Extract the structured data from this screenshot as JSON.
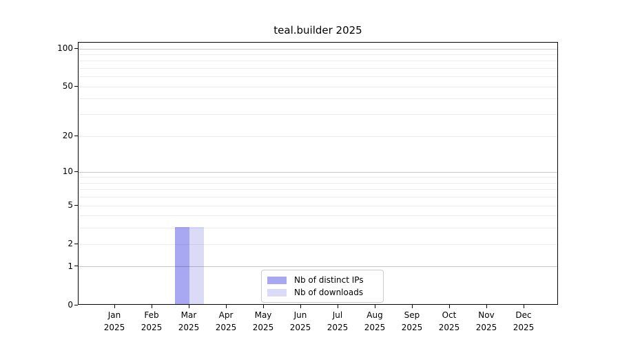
{
  "chart_data": {
    "type": "bar",
    "title": "teal.builder 2025",
    "year_label": "2025",
    "categories": [
      "Jan",
      "Feb",
      "Mar",
      "Apr",
      "May",
      "Jun",
      "Jul",
      "Aug",
      "Sep",
      "Oct",
      "Nov",
      "Dec"
    ],
    "series": [
      {
        "name": "Nb of distinct IPs",
        "color": "#a8a8f2",
        "values": [
          0,
          0,
          3,
          0,
          0,
          0,
          0,
          0,
          0,
          0,
          0,
          0
        ]
      },
      {
        "name": "Nb of downloads",
        "color": "#dbdbf8",
        "values": [
          0,
          0,
          3,
          0,
          0,
          0,
          0,
          0,
          0,
          0,
          0,
          0
        ]
      }
    ],
    "yscale": "log1p",
    "yticks": [
      0,
      1,
      2,
      5,
      10,
      20,
      50,
      100
    ],
    "ylim": [
      0,
      112
    ],
    "grid": "horizontal",
    "grid_minor_values": [
      2,
      3,
      4,
      5,
      6,
      7,
      8,
      9,
      20,
      30,
      40,
      50,
      60,
      70,
      80,
      90
    ],
    "grid_major_values": [
      1,
      10,
      100
    ],
    "grid_minor_color": "rgba(0,0,0,0.07)",
    "grid_major_color": "rgba(0,0,0,0.22)",
    "axis_color": "#000000",
    "text_color": "#000000",
    "legend_position": "bottom-center"
  }
}
